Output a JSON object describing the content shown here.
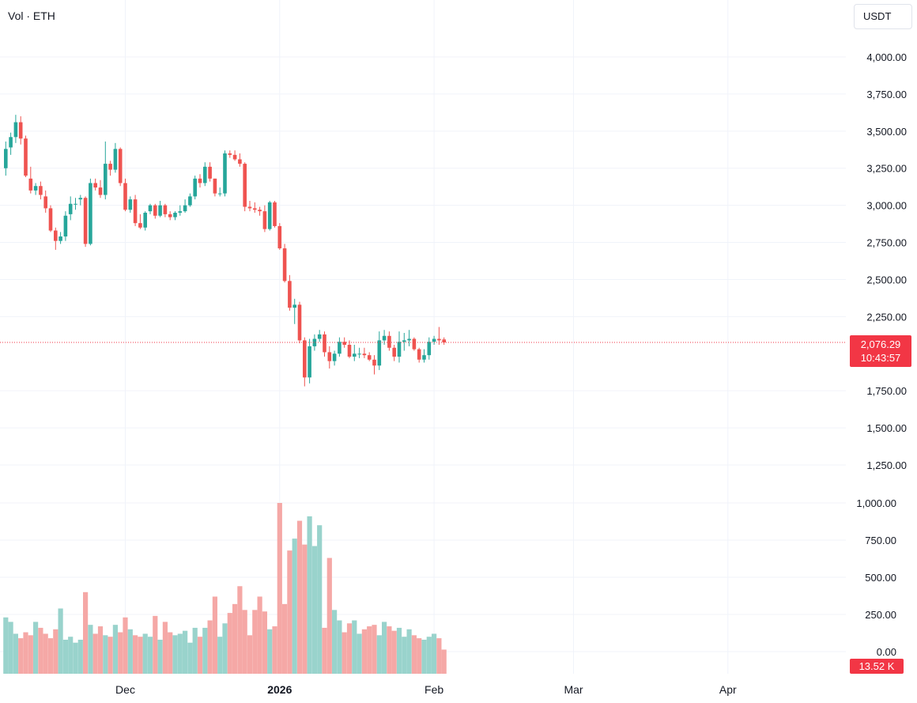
{
  "legend": {
    "text": "Vol · ETH"
  },
  "currency_button": {
    "label": "USDT"
  },
  "last_price": {
    "price": "2,076.29",
    "countdown": "10:43:57"
  },
  "last_volume": {
    "label": "13.52 K"
  },
  "colors": {
    "up": "#26a69a",
    "down": "#ef5350",
    "up_vol": "#99d3cc",
    "down_vol": "#f5a8a6",
    "badge": "#f23645"
  },
  "chart_data": {
    "type": "candlestick",
    "price_axis": {
      "ticks": [
        "4,000.00",
        "3,750.00",
        "3,500.00",
        "3,250.00",
        "3,000.00",
        "2,750.00",
        "2,500.00",
        "2,250.00",
        "1,750.00",
        "1,500.00",
        "1,250.00"
      ],
      "tick_values": [
        4000,
        3750,
        3500,
        3250,
        3000,
        2750,
        2500,
        2250,
        1750,
        1500,
        1250
      ],
      "range": [
        1000,
        4000
      ]
    },
    "volume_axis": {
      "ticks": [
        "1,000.00",
        "750.00",
        "500.00",
        "250.00",
        "0.00"
      ],
      "tick_values": [
        1000,
        750,
        500,
        250,
        0
      ],
      "range": [
        0,
        1000
      ]
    },
    "time_axis": {
      "labels": [
        "Dec",
        "2026",
        "Feb",
        "Mar",
        "Apr"
      ],
      "dates": [
        "2025-12-01",
        "2026-01-01",
        "2026-02-01",
        "2026-03-01",
        "2026-04-01"
      ],
      "bold": [
        false,
        true,
        false,
        false,
        false
      ]
    },
    "grid": true,
    "last_price_line": 2076.29,
    "closes": [
      3380,
      3460,
      3560,
      3450,
      3200,
      3100,
      3130,
      3070,
      2980,
      2830,
      2760,
      2790,
      2930,
      3010,
      3010,
      3050,
      2740,
      3150,
      3120,
      3070,
      3280,
      3240,
      3380,
      3150,
      2970,
      3040,
      2880,
      2850,
      2950,
      3000,
      2930,
      3000,
      2940,
      2920,
      2950,
      2960,
      3000,
      3060,
      3180,
      3150,
      3260,
      3180,
      3080,
      3080,
      3350,
      3340,
      3310,
      3280,
      2990,
      2980,
      2970,
      2960,
      2840,
      3020,
      2860,
      2710,
      2490,
      2310,
      2330,
      2090,
      1840,
      2050,
      2100,
      2130,
      2010,
      1950,
      2000,
      2080,
      2060,
      1980,
      2000,
      2000,
      1990,
      1960,
      1920,
      2090,
      2120,
      2040,
      1980,
      2080,
      2090,
      2100,
      2030,
      1960,
      1990,
      2080,
      2100,
      2090,
      2076
    ],
    "opens": [
      3250,
      3390,
      3460,
      3560,
      3450,
      3180,
      3100,
      3130,
      3060,
      2980,
      2830,
      2760,
      2790,
      2940,
      3010,
      3040,
      3050,
      2740,
      3150,
      3120,
      3070,
      3280,
      3240,
      3380,
      3150,
      2970,
      3040,
      2880,
      2850,
      2960,
      3000,
      2930,
      3000,
      2940,
      2920,
      2950,
      2960,
      3000,
      3060,
      3180,
      3150,
      3260,
      3180,
      3080,
      3080,
      3350,
      3340,
      3310,
      3280,
      2990,
      2980,
      2970,
      2960,
      2840,
      3020,
      2860,
      2710,
      2490,
      2310,
      2330,
      2090,
      1840,
      2050,
      2100,
      2130,
      2010,
      1950,
      2000,
      2080,
      2060,
      1980,
      2000,
      2000,
      1990,
      1960,
      1920,
      2090,
      2120,
      2040,
      1980,
      2080,
      2090,
      2100,
      2030,
      1960,
      1990,
      2080,
      2100,
      2096
    ],
    "highs": [
      3430,
      3490,
      3610,
      3600,
      3470,
      3260,
      3150,
      3160,
      3100,
      3000,
      2850,
      2820,
      2960,
      3060,
      3050,
      3070,
      3060,
      3180,
      3180,
      3170,
      3430,
      3300,
      3420,
      3390,
      3180,
      3060,
      3070,
      2940,
      2960,
      3010,
      3010,
      3030,
      3010,
      2960,
      2960,
      3000,
      3040,
      3080,
      3200,
      3210,
      3290,
      3290,
      3180,
      3120,
      3370,
      3370,
      3370,
      3350,
      3290,
      3030,
      3020,
      2990,
      3000,
      3030,
      3030,
      2880,
      2740,
      2530,
      2370,
      2350,
      2110,
      2100,
      2130,
      2160,
      2150,
      2050,
      2020,
      2110,
      2110,
      2090,
      2060,
      2040,
      2040,
      2010,
      1990,
      2150,
      2160,
      2150,
      2060,
      2150,
      2140,
      2160,
      2110,
      2040,
      2030,
      2110,
      2120,
      2180,
      2110
    ],
    "lows": [
      3200,
      3340,
      3420,
      3410,
      3190,
      3080,
      3070,
      3040,
      2950,
      2820,
      2700,
      2740,
      2760,
      2900,
      2970,
      3000,
      2720,
      2730,
      3100,
      3050,
      3040,
      3200,
      3220,
      3130,
      2960,
      2950,
      2860,
      2840,
      2830,
      2940,
      2910,
      2920,
      2920,
      2900,
      2900,
      2930,
      2950,
      2990,
      3040,
      3120,
      3130,
      3160,
      3060,
      3060,
      3060,
      3320,
      3300,
      3260,
      2960,
      2960,
      2950,
      2930,
      2820,
      2830,
      2850,
      2700,
      2480,
      2290,
      2200,
      2070,
      1780,
      1800,
      2020,
      2080,
      1980,
      1900,
      1920,
      1980,
      2040,
      1970,
      1950,
      1970,
      1970,
      1950,
      1860,
      1890,
      2060,
      2020,
      1950,
      1940,
      2020,
      2050,
      2020,
      1940,
      1940,
      1960,
      2060,
      2060,
      2060
    ],
    "volumes": [
      230,
      200,
      120,
      90,
      130,
      110,
      200,
      160,
      120,
      90,
      150,
      290,
      80,
      100,
      60,
      80,
      400,
      180,
      120,
      170,
      110,
      100,
      180,
      130,
      230,
      150,
      110,
      100,
      120,
      100,
      240,
      80,
      200,
      130,
      110,
      120,
      140,
      60,
      160,
      100,
      160,
      210,
      370,
      100,
      190,
      260,
      320,
      440,
      280,
      110,
      280,
      370,
      270,
      150,
      170,
      1000,
      320,
      680,
      760,
      880,
      720,
      910,
      710,
      850,
      160,
      630,
      280,
      210,
      130,
      190,
      210,
      120,
      150,
      170,
      180,
      110,
      200,
      170,
      140,
      160,
      100,
      150,
      110,
      90,
      80,
      100,
      120,
      90,
      13.52
    ]
  }
}
